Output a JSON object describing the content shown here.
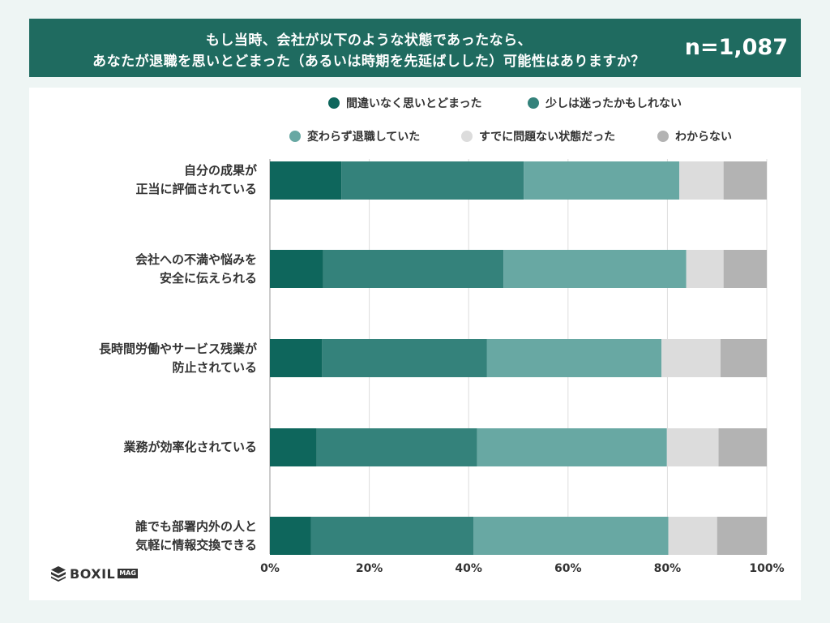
{
  "header": {
    "question_line1": "もし当時、会社が以下のような状態であったなら、",
    "question_line2": "あなたが退職を思いとどまった（あるいは時期を先延ばしした）可能性はありますか？",
    "sample_size": "n=1,087"
  },
  "logo": {
    "text": "BOXIL",
    "tag": "MAG"
  },
  "colors": [
    "#0e665c",
    "#34827b",
    "#68a8a3",
    "#dcdcdc",
    "#b3b3b3"
  ],
  "chart_data": {
    "type": "bar",
    "orientation": "horizontal",
    "stacked": true,
    "title": "",
    "xlim": [
      0,
      100
    ],
    "x_ticks": [
      "0%",
      "20%",
      "40%",
      "60%",
      "80%",
      "100%"
    ],
    "categories": [
      [
        "自分の成果が",
        "正当に評価されている"
      ],
      [
        "会社への不満や悩みを",
        "安全に伝えられる"
      ],
      [
        "長時間労働やサービス残業が",
        "防止されている"
      ],
      [
        "業務が効率化されている"
      ],
      [
        "誰でも部署内外の人と",
        "気軽に情報交換できる"
      ]
    ],
    "series": [
      {
        "name": "間違いなく思いとどまった",
        "values": [
          14.4,
          10.7,
          10.5,
          9.4,
          8.3
        ]
      },
      {
        "name": "少しは迷ったかもしれない",
        "values": [
          36.7,
          36.3,
          33.2,
          32.3,
          32.7
        ]
      },
      {
        "name": "変わらず退職していた",
        "values": [
          31.3,
          36.8,
          35.1,
          38.2,
          39.2
        ]
      },
      {
        "name": "すでに問題ない状態だった",
        "values": [
          8.9,
          7.5,
          11.9,
          10.4,
          9.8
        ]
      },
      {
        "name": "わからない",
        "values": [
          8.7,
          8.7,
          9.3,
          9.7,
          10.0
        ]
      }
    ],
    "legend_position": "top",
    "grid": true
  }
}
